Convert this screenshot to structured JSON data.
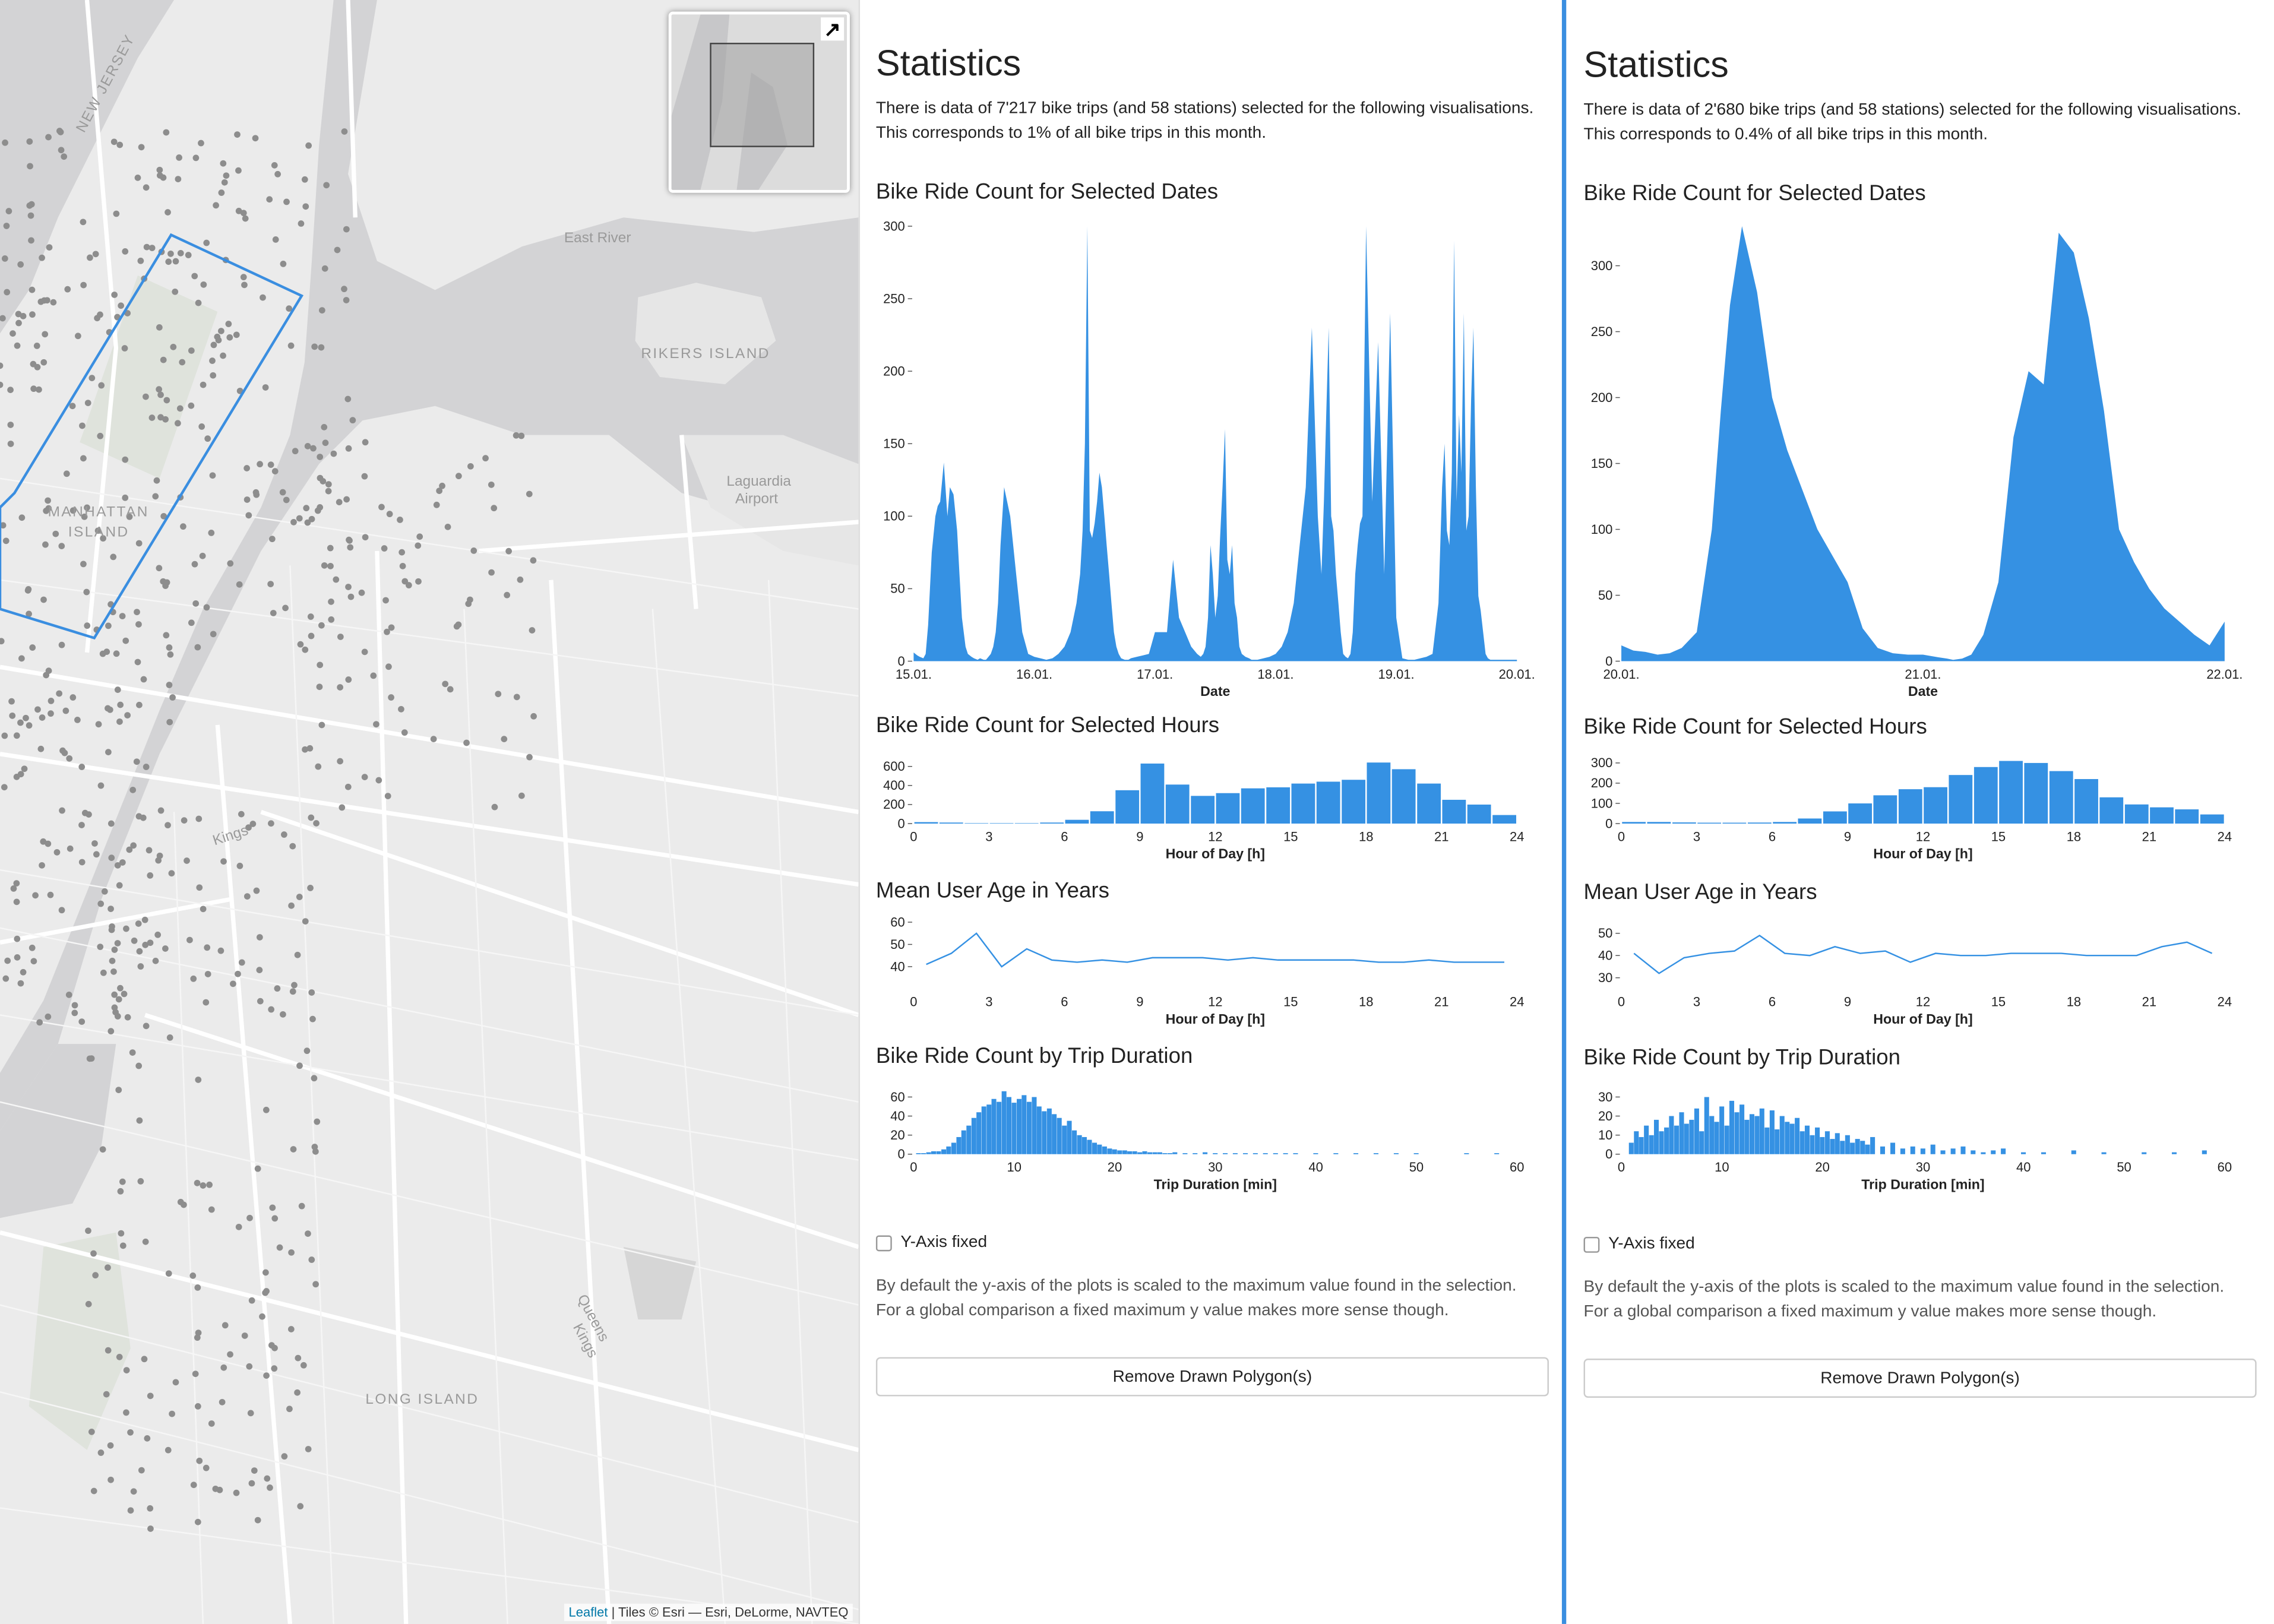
{
  "map": {
    "labels": {
      "new_jersey": "NEW JERSEY",
      "east_river": "East River",
      "rikers_island": "RIKERS ISLAND",
      "laguardia_line1": "Laguardia",
      "laguardia_line2": "Airport",
      "manhattan_line1": "MANHATTAN",
      "manhattan_line2": "ISLAND",
      "kings": "Kings",
      "queens_line1": "Queens",
      "queens_line2": "Kings",
      "long_island": "LONG ISLAND"
    },
    "attribution": {
      "leaflet": "Leaflet",
      "rest": " | Tiles © Esri — Esri, DeLorme, NAVTEQ"
    },
    "minimap_toggle_icon": "expand-arrow-icon",
    "colors": {
      "water": "#cfcfd1",
      "land": "#e9e9e9",
      "road": "#ffffff",
      "station": "#8a8a8a",
      "polygon": "#3a8ee0"
    }
  },
  "panels": [
    {
      "title": "Statistics",
      "summary_line1": "There is data of 7'217 bike trips (and 58 stations) selected for the following visualisations.",
      "summary_line2": "This corresponds to 1% of all bike trips in this month.",
      "section_dates": "Bike Ride Count for Selected Dates",
      "section_hours": "Bike Ride Count for Selected Hours",
      "section_age": "Mean User Age in Years",
      "section_duration": "Bike Ride Count by Trip Duration",
      "checkbox_label": "Y-Axis fixed",
      "help_line1": "By default the y-axis of the plots is scaled to the maximum value found in the selection.",
      "help_line2": "For a global comparison a fixed maximum y value makes more sense though.",
      "button_label": "Remove Drawn Polygon(s)"
    },
    {
      "title": "Statistics",
      "summary_line1": "There is data of 2'680 bike trips (and 58 stations) selected for the following visualisations.",
      "summary_line2": "This corresponds to 0.4% of all bike trips in this month.",
      "section_dates": "Bike Ride Count for Selected Dates",
      "section_hours": "Bike Ride Count for Selected Hours",
      "section_age": "Mean User Age in Years",
      "section_duration": "Bike Ride Count by Trip Duration",
      "checkbox_label": "Y-Axis fixed",
      "help_line1": "By default the y-axis of the plots is scaled to the maximum value found in the selection.",
      "help_line2": "For a global comparison a fixed maximum y value makes more sense though.",
      "button_label": "Remove Drawn Polygon(s)"
    }
  ],
  "chart_data": [
    {
      "id": "left-dates",
      "type": "area",
      "xlabel": "Date",
      "ylabel": "",
      "xlim": [
        0,
        5
      ],
      "ylim": [
        0,
        300
      ],
      "x_ticks": [
        0,
        1,
        2,
        3,
        4,
        5
      ],
      "x_tick_labels": [
        "15.01.",
        "16.01.",
        "17.01.",
        "18.01.",
        "19.01.",
        "20.01."
      ],
      "y_ticks": [
        0,
        50,
        100,
        150,
        200,
        250,
        300
      ],
      "x": [
        0.0,
        0.03,
        0.05,
        0.08,
        0.1,
        0.12,
        0.15,
        0.18,
        0.2,
        0.22,
        0.25,
        0.28,
        0.3,
        0.33,
        0.36,
        0.38,
        0.4,
        0.43,
        0.45,
        0.48,
        0.5,
        0.53,
        0.55,
        0.58,
        0.6,
        0.62,
        0.64,
        0.66,
        0.68,
        0.7,
        0.72,
        0.75,
        0.8,
        0.85,
        0.9,
        0.95,
        1.0,
        1.05,
        1.1,
        1.15,
        1.2,
        1.25,
        1.3,
        1.35,
        1.38,
        1.4,
        1.42,
        1.44,
        1.46,
        1.48,
        1.5,
        1.52,
        1.54,
        1.56,
        1.58,
        1.6,
        1.62,
        1.64,
        1.66,
        1.68,
        1.7,
        1.72,
        1.75,
        1.78,
        1.8,
        1.85,
        1.9,
        1.95,
        2.0,
        2.05,
        2.1,
        2.15,
        2.2,
        2.25,
        2.3,
        2.35,
        2.38,
        2.4,
        2.42,
        2.44,
        2.46,
        2.48,
        2.5,
        2.52,
        2.54,
        2.56,
        2.58,
        2.6,
        2.62,
        2.64,
        2.66,
        2.68,
        2.7,
        2.72,
        2.75,
        2.78,
        2.8,
        2.85,
        2.9,
        2.95,
        3.0,
        3.05,
        3.1,
        3.15,
        3.2,
        3.25,
        3.3,
        3.35,
        3.38,
        3.4,
        3.42,
        3.44,
        3.46,
        3.48,
        3.5,
        3.52,
        3.54,
        3.56,
        3.58,
        3.6,
        3.62,
        3.64,
        3.66,
        3.68,
        3.7,
        3.72,
        3.75,
        3.8,
        3.85,
        3.9,
        3.95,
        4.0,
        4.05,
        4.1,
        4.15,
        4.2,
        4.25,
        4.3,
        4.35,
        4.38,
        4.4,
        4.42,
        4.44,
        4.46,
        4.48,
        4.5,
        4.52,
        4.54,
        4.56,
        4.58,
        4.6,
        4.62,
        4.64,
        4.66,
        4.68,
        4.7,
        4.72,
        4.74,
        4.76,
        4.78,
        4.8,
        4.82,
        4.84,
        4.86,
        4.88,
        4.9,
        4.92,
        4.94,
        4.96,
        4.98,
        5.0
      ],
      "y": [
        6,
        4,
        3,
        2,
        5,
        25,
        75,
        100,
        107,
        110,
        137,
        100,
        120,
        115,
        90,
        60,
        30,
        10,
        5,
        3,
        2,
        1,
        2,
        1,
        1,
        3,
        5,
        10,
        20,
        40,
        80,
        120,
        100,
        60,
        20,
        5,
        3,
        2,
        1,
        2,
        5,
        10,
        20,
        40,
        60,
        90,
        150,
        300,
        90,
        85,
        95,
        110,
        130,
        120,
        100,
        80,
        60,
        40,
        20,
        10,
        5,
        2,
        1,
        1,
        2,
        3,
        4,
        5,
        20,
        20,
        20,
        70,
        30,
        20,
        10,
        5,
        3,
        5,
        10,
        30,
        80,
        60,
        30,
        45,
        85,
        120,
        160,
        70,
        60,
        80,
        40,
        30,
        10,
        5,
        3,
        2,
        1,
        1,
        2,
        3,
        5,
        10,
        20,
        40,
        80,
        120,
        230,
        100,
        60,
        110,
        170,
        230,
        100,
        90,
        60,
        40,
        20,
        5,
        3,
        2,
        5,
        20,
        60,
        80,
        95,
        100,
        300,
        110,
        220,
        60,
        240,
        30,
        2,
        1,
        1,
        2,
        3,
        5,
        40,
        120,
        150,
        90,
        80,
        130,
        290,
        110,
        170,
        130,
        240,
        90,
        100,
        180,
        230,
        120,
        45,
        35,
        20,
        5,
        2,
        1,
        1,
        1,
        1,
        1,
        1,
        1,
        1,
        1,
        1,
        1,
        1
      ]
    },
    {
      "id": "left-hours",
      "type": "bar",
      "xlabel": "Hour of Day [h]",
      "ylabel": "",
      "xlim": [
        0,
        24
      ],
      "ylim": [
        0,
        700
      ],
      "x_ticks": [
        0,
        3,
        6,
        9,
        12,
        15,
        18,
        21,
        24
      ],
      "y_ticks": [
        0,
        200,
        400,
        600
      ],
      "categories": [
        0,
        1,
        2,
        3,
        4,
        5,
        6,
        7,
        8,
        9,
        10,
        11,
        12,
        13,
        14,
        15,
        16,
        17,
        18,
        19,
        20,
        21,
        22,
        23
      ],
      "values": [
        15,
        10,
        5,
        5,
        5,
        10,
        40,
        130,
        350,
        630,
        410,
        290,
        320,
        370,
        380,
        420,
        440,
        460,
        640,
        570,
        420,
        250,
        200,
        90
      ]
    },
    {
      "id": "left-age",
      "type": "line",
      "xlabel": "Hour of Day [h]",
      "ylabel": "",
      "xlim": [
        0,
        24
      ],
      "ylim": [
        30,
        60
      ],
      "x_ticks": [
        0,
        3,
        6,
        9,
        12,
        15,
        18,
        21,
        24
      ],
      "y_ticks": [
        40,
        50,
        60
      ],
      "x": [
        0.5,
        1.5,
        2.5,
        3.5,
        4.5,
        5.5,
        6.5,
        7.5,
        8.5,
        9.5,
        10.5,
        11.5,
        12.5,
        13.5,
        14.5,
        15.5,
        16.5,
        17.5,
        18.5,
        19.5,
        20.5,
        21.5,
        22.5,
        23.5
      ],
      "y": [
        41,
        46,
        55,
        40,
        48,
        43,
        42,
        43,
        42,
        44,
        44,
        44,
        43,
        44,
        43,
        43,
        43,
        43,
        42,
        42,
        43,
        42,
        42,
        42
      ]
    },
    {
      "id": "left-duration",
      "type": "bar",
      "xlabel": "Trip Duration [min]",
      "ylabel": "",
      "xlim": [
        0,
        60
      ],
      "ylim": [
        0,
        70
      ],
      "x_ticks": [
        0,
        10,
        20,
        30,
        40,
        50,
        60
      ],
      "y_ticks": [
        0,
        20,
        40,
        60
      ],
      "bin_width": 0.5,
      "x": [
        0.5,
        1,
        1.5,
        2,
        2.5,
        3,
        3.5,
        4,
        4.5,
        5,
        5.5,
        6,
        6.5,
        7,
        7.5,
        8,
        8.5,
        9,
        9.5,
        10,
        10.5,
        11,
        11.5,
        12,
        12.5,
        13,
        13.5,
        14,
        14.5,
        15,
        15.5,
        16,
        16.5,
        17,
        17.5,
        18,
        18.5,
        19,
        19.5,
        20,
        20.5,
        21,
        21.5,
        22,
        22.5,
        23,
        23.5,
        24,
        24.5,
        25,
        25.5,
        26,
        27,
        28,
        29,
        30,
        31,
        32,
        33,
        34,
        35,
        36,
        37,
        38,
        40,
        42,
        44,
        46,
        48,
        50,
        55,
        58
      ],
      "values": [
        1,
        1,
        2,
        3,
        3,
        5,
        8,
        12,
        18,
        25,
        30,
        38,
        44,
        50,
        52,
        58,
        55,
        66,
        60,
        54,
        58,
        62,
        55,
        60,
        50,
        45,
        48,
        42,
        38,
        30,
        35,
        25,
        20,
        18,
        15,
        12,
        10,
        8,
        6,
        5,
        4,
        4,
        3,
        3,
        2,
        3,
        2,
        2,
        2,
        1,
        1,
        2,
        1,
        1,
        2,
        1,
        1,
        1,
        1,
        1,
        1,
        1,
        1,
        1,
        1,
        1,
        1,
        1,
        1,
        1,
        1,
        1
      ]
    },
    {
      "id": "right-dates",
      "type": "area",
      "xlabel": "Date",
      "ylabel": "",
      "xlim": [
        0,
        2
      ],
      "ylim": [
        0,
        330
      ],
      "x_ticks": [
        0,
        1,
        2
      ],
      "x_tick_labels": [
        "20.01.",
        "21.01.",
        "22.01."
      ],
      "y_ticks": [
        0,
        50,
        100,
        150,
        200,
        250,
        300
      ],
      "x": [
        0.0,
        0.04,
        0.08,
        0.12,
        0.16,
        0.2,
        0.25,
        0.3,
        0.33,
        0.36,
        0.4,
        0.45,
        0.5,
        0.55,
        0.6,
        0.65,
        0.7,
        0.75,
        0.8,
        0.85,
        0.9,
        0.95,
        1.0,
        1.05,
        1.08,
        1.1,
        1.13,
        1.16,
        1.2,
        1.25,
        1.3,
        1.35,
        1.4,
        1.45,
        1.5,
        1.55,
        1.6,
        1.65,
        1.7,
        1.75,
        1.8,
        1.85,
        1.9,
        1.95,
        2.0
      ],
      "y": [
        12,
        8,
        7,
        5,
        6,
        10,
        22,
        100,
        190,
        270,
        330,
        280,
        200,
        160,
        130,
        100,
        80,
        60,
        25,
        10,
        6,
        5,
        5,
        3,
        2,
        1,
        2,
        5,
        20,
        60,
        170,
        220,
        210,
        325,
        310,
        260,
        190,
        100,
        75,
        55,
        40,
        30,
        20,
        12,
        30
      ]
    },
    {
      "id": "right-hours",
      "type": "bar",
      "xlabel": "Hour of Day [h]",
      "ylabel": "",
      "xlim": [
        0,
        24
      ],
      "ylim": [
        0,
        330
      ],
      "x_ticks": [
        0,
        3,
        6,
        9,
        12,
        15,
        18,
        21,
        24
      ],
      "y_ticks": [
        0,
        100,
        200,
        300
      ],
      "categories": [
        0,
        1,
        2,
        3,
        4,
        5,
        6,
        7,
        8,
        9,
        10,
        11,
        12,
        13,
        14,
        15,
        16,
        17,
        18,
        19,
        20,
        21,
        22,
        23
      ],
      "values": [
        8,
        8,
        6,
        4,
        4,
        5,
        8,
        25,
        60,
        100,
        140,
        170,
        180,
        240,
        280,
        310,
        300,
        260,
        220,
        130,
        95,
        80,
        70,
        45
      ]
    },
    {
      "id": "right-age",
      "type": "line",
      "xlabel": "Hour of Day [h]",
      "ylabel": "",
      "xlim": [
        0,
        24
      ],
      "ylim": [
        25,
        55
      ],
      "x_ticks": [
        0,
        3,
        6,
        9,
        12,
        15,
        18,
        21,
        24
      ],
      "y_ticks": [
        30,
        40,
        50
      ],
      "x": [
        0.5,
        1.5,
        2.5,
        3.5,
        4.5,
        5.5,
        6.5,
        7.5,
        8.5,
        9.5,
        10.5,
        11.5,
        12.5,
        13.5,
        14.5,
        15.5,
        16.5,
        17.5,
        18.5,
        19.5,
        20.5,
        21.5,
        22.5,
        23.5
      ],
      "y": [
        41,
        32,
        39,
        41,
        42,
        49,
        41,
        40,
        44,
        41,
        42,
        37,
        41,
        40,
        40,
        41,
        41,
        41,
        40,
        40,
        40,
        44,
        46,
        41
      ]
    },
    {
      "id": "right-duration",
      "type": "bar",
      "xlabel": "Trip Duration [min]",
      "ylabel": "",
      "xlim": [
        0,
        60
      ],
      "ylim": [
        0,
        35
      ],
      "x_ticks": [
        0,
        10,
        20,
        30,
        40,
        50,
        60
      ],
      "y_ticks": [
        0,
        10,
        20,
        30
      ],
      "bin_width": 0.5,
      "x": [
        1,
        1.5,
        2,
        2.5,
        3,
        3.5,
        4,
        4.5,
        5,
        5.5,
        6,
        6.5,
        7,
        7.5,
        8,
        8.5,
        9,
        9.5,
        10,
        10.5,
        11,
        11.5,
        12,
        12.5,
        13,
        13.5,
        14,
        14.5,
        15,
        15.5,
        16,
        16.5,
        17,
        17.5,
        18,
        18.5,
        19,
        19.5,
        20,
        20.5,
        21,
        21.5,
        22,
        22.5,
        23,
        23.5,
        24,
        24.5,
        25,
        26,
        27,
        28,
        29,
        30,
        31,
        32,
        33,
        34,
        35,
        36,
        37,
        38,
        40,
        42,
        45,
        48,
        52,
        55,
        58
      ],
      "values": [
        6,
        12,
        9,
        15,
        10,
        18,
        12,
        14,
        20,
        15,
        22,
        16,
        18,
        24,
        12,
        30,
        20,
        17,
        25,
        15,
        28,
        22,
        26,
        18,
        21,
        20,
        24,
        14,
        23,
        13,
        20,
        17,
        16,
        19,
        12,
        15,
        10,
        14,
        9,
        12,
        8,
        11,
        7,
        10,
        6,
        8,
        7,
        5,
        9,
        4,
        6,
        3,
        4,
        3,
        5,
        2,
        3,
        4,
        2,
        1,
        2,
        3,
        1,
        1,
        2,
        1,
        1,
        1,
        2
      ]
    }
  ]
}
